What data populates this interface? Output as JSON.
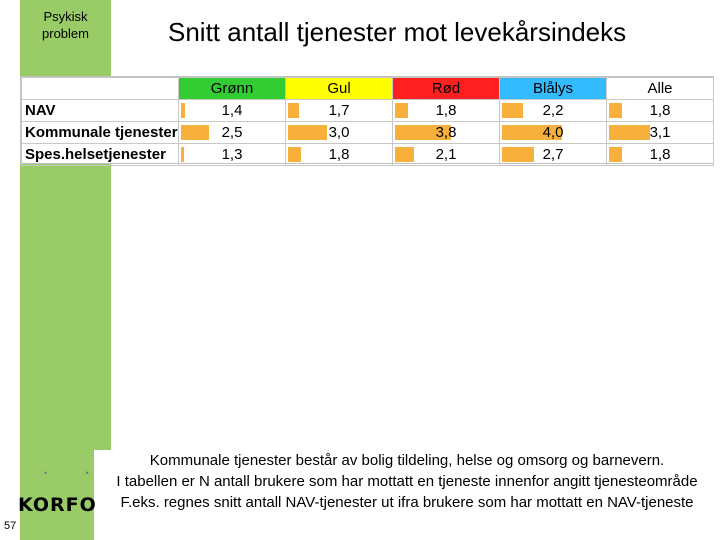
{
  "sidebar": {
    "label_line1": "Psykisk",
    "label_line2": "problem"
  },
  "title": "Snitt antall tjenester mot levekårsindeks",
  "table": {
    "columns": [
      {
        "label": "Grønn",
        "color": "#33cc33"
      },
      {
        "label": "Gul",
        "color": "#ffff00"
      },
      {
        "label": "Rød",
        "color": "#ff2020"
      },
      {
        "label": "Blålys",
        "color": "#33bbff"
      },
      {
        "label": "Alle",
        "color": "#ffffff"
      }
    ],
    "rows": [
      {
        "label": "NAV",
        "values": [
          "1,4",
          "1,7",
          "1,8",
          "2,2",
          "1,8"
        ],
        "numeric": [
          1.4,
          1.7,
          1.8,
          2.2,
          1.8
        ]
      },
      {
        "label": "Kommunale tjenester",
        "values": [
          "2,5",
          "3,0",
          "3,8",
          "4,0",
          "3,1"
        ],
        "numeric": [
          2.5,
          3.0,
          3.8,
          4.0,
          3.1
        ]
      },
      {
        "label": "Spes.helsetjenester",
        "values": [
          "1,3",
          "1,8",
          "2,1",
          "2,7",
          "1,8"
        ],
        "numeric": [
          1.3,
          1.8,
          2.1,
          2.7,
          1.8
        ]
      }
    ],
    "bar_color": "#f7b03c"
  },
  "note": {
    "line1": "Kommunale tjenester består av bolig tildeling, helse og omsorg og barnevern.",
    "line2": "I tabellen er N antall brukere som har mottatt en tjeneste innenfor angitt tjenesteområde",
    "line3": "F.eks. regnes snitt antall NAV-tjenester ut ifra brukere som har mottatt en NAV-tjeneste"
  },
  "logo": {
    "text": "KORFO",
    "dots": "• •"
  },
  "page_number": "57"
}
